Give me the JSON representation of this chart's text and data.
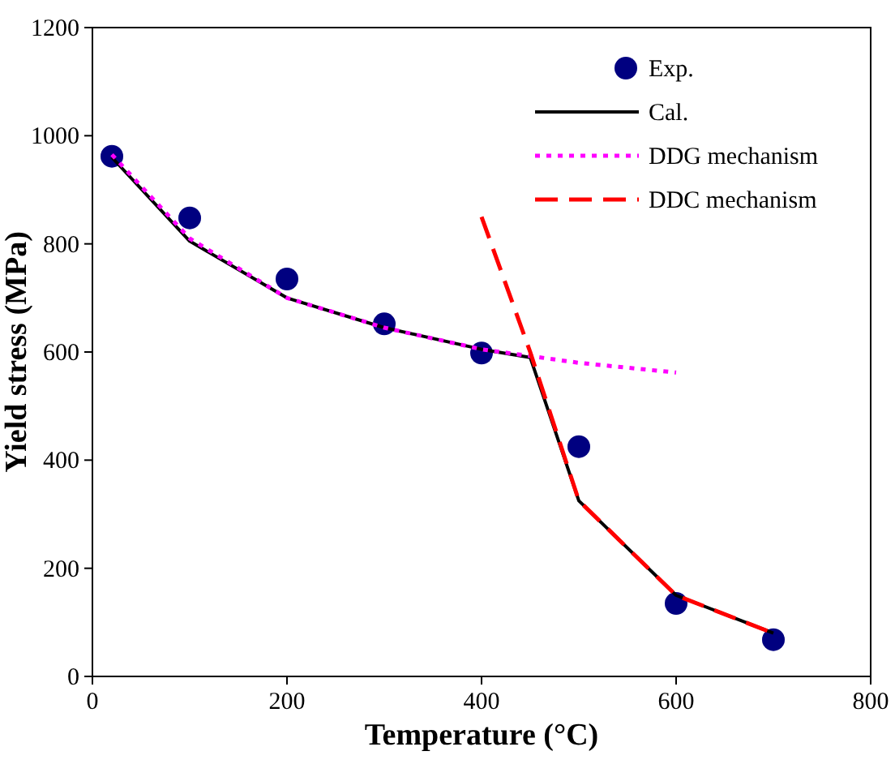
{
  "chart_data": {
    "type": "line",
    "xlabel": "Temperature (°C)",
    "ylabel": "Yield stress (MPa)",
    "xlim": [
      0,
      800
    ],
    "xticks": [
      0,
      200,
      400,
      600,
      800
    ],
    "ylim": [
      0,
      1200
    ],
    "yticks": [
      0,
      200,
      400,
      600,
      800,
      1000,
      1200
    ],
    "grid": false,
    "legend": "top right",
    "series": [
      {
        "name": "Exp.",
        "type": "scatter",
        "marker": "circle",
        "color": "#000080",
        "x": [
          20,
          100,
          200,
          300,
          400,
          500,
          600,
          700
        ],
        "values": [
          962,
          848,
          735,
          652,
          598,
          425,
          135,
          68
        ]
      },
      {
        "name": "Cal.",
        "line_style": "solid",
        "color": "#000000",
        "x": [
          20,
          100,
          200,
          300,
          400,
          450,
          500,
          600,
          700
        ],
        "values": [
          960,
          805,
          700,
          645,
          605,
          590,
          325,
          150,
          80
        ]
      },
      {
        "name": "DDG mechanism",
        "line_style": "dotted",
        "color": "#ff00ff",
        "x": [
          20,
          100,
          200,
          300,
          400,
          500,
          600
        ],
        "values": [
          965,
          810,
          700,
          645,
          605,
          580,
          562
        ]
      },
      {
        "name": "DDC mechanism",
        "line_style": "dashed",
        "color": "#ff0000",
        "x": [
          400,
          450,
          500,
          600,
          700
        ],
        "values": [
          850,
          600,
          325,
          150,
          80
        ]
      }
    ]
  }
}
